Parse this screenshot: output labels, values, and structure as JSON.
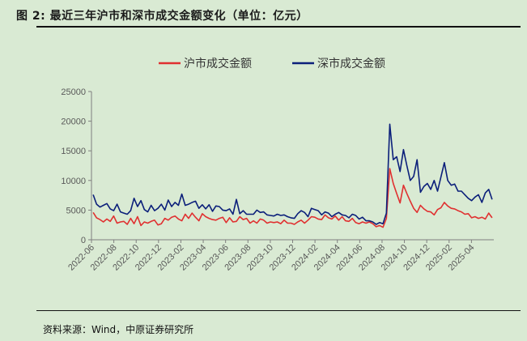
{
  "figure": {
    "title": "图 2:  最近三年沪市和深市成交金额变化（单位：亿元）",
    "source": "资料来源：Wind，中原证券研究所"
  },
  "chart_data": {
    "type": "line",
    "title": "",
    "xlabel": "",
    "ylabel": "",
    "ylim": [
      0,
      25000
    ],
    "yticks": [
      0,
      5000,
      10000,
      15000,
      20000,
      25000
    ],
    "xticks": [
      "2022-06",
      "2022-08",
      "2022-10",
      "2022-12",
      "2023-02",
      "2023-04",
      "2023-06",
      "2023-08",
      "2023-10",
      "2023-12",
      "2024-02",
      "2024-04",
      "2024-06",
      "2024-08",
      "2024-10",
      "2024-12",
      "2025-02",
      "2025-04"
    ],
    "x_range": [
      "2022-06",
      "2025-05"
    ],
    "legend_position": "top",
    "grid": false,
    "series": [
      {
        "name": "沪市成交金额",
        "color": "#e03030",
        "values": [
          4600,
          3700,
          3400,
          3000,
          3500,
          3100,
          4000,
          2800,
          3000,
          3100,
          2600,
          3600,
          2700,
          3900,
          2400,
          3000,
          2800,
          3100,
          3300,
          2500,
          2700,
          3600,
          3300,
          3800,
          4000,
          3500,
          3200,
          4300,
          3600,
          4500,
          3800,
          3200,
          4400,
          3900,
          3600,
          3400,
          3300,
          3600,
          3800,
          2900,
          3700,
          3000,
          3100,
          3900,
          3400,
          3600,
          2800,
          3200,
          2800,
          3500,
          3300,
          2800,
          3000,
          2900,
          3000,
          2700,
          3300,
          2800,
          2800,
          2600,
          3000,
          3300,
          2800,
          3300,
          3900,
          3800,
          3500,
          3400,
          4200,
          3700,
          3500,
          4000,
          3300,
          3900,
          3200,
          3100,
          3600,
          2900,
          2700,
          3000,
          2800,
          3000,
          2700,
          2200,
          2400,
          2100,
          3600,
          12000,
          9500,
          7800,
          6200,
          9200,
          7800,
          6500,
          5300,
          4600,
          5800,
          5200,
          4800,
          4700,
          4200,
          5100,
          5400,
          6300,
          5700,
          5300,
          5200,
          4900,
          4700,
          4300,
          4400,
          3700,
          3900,
          3600,
          3800,
          3500,
          4500,
          3700
        ]
      },
      {
        "name": "深市成交金额",
        "color": "#0b1f7a",
        "values": [
          7600,
          6000,
          5500,
          5800,
          6100,
          5200,
          4900,
          6000,
          4700,
          4500,
          4300,
          4900,
          7000,
          5600,
          6600,
          5100,
          4700,
          5800,
          4900,
          5300,
          6000,
          5000,
          6700,
          5600,
          6300,
          5800,
          7700,
          5800,
          6000,
          6300,
          6500,
          5300,
          5900,
          5200,
          5900,
          4800,
          5700,
          5600,
          5000,
          4900,
          5200,
          4300,
          6800,
          4400,
          4900,
          4300,
          4300,
          4300,
          5000,
          4600,
          4700,
          4200,
          4100,
          4000,
          4300,
          4100,
          4200,
          3900,
          3700,
          3600,
          4400,
          4900,
          4600,
          3900,
          5300,
          5100,
          4900,
          4200,
          4700,
          4500,
          3900,
          4300,
          4600,
          4200,
          4100,
          3700,
          4300,
          4100,
          3500,
          3800,
          3200,
          3200,
          3000,
          2600,
          2900,
          2700,
          4500,
          19500,
          13500,
          14000,
          11500,
          15200,
          12500,
          10000,
          10700,
          13500,
          8000,
          9000,
          9500,
          8500,
          10000,
          8200,
          10600,
          13000,
          10000,
          9200,
          9400,
          8200,
          8200,
          7600,
          7000,
          6600,
          7200,
          7600,
          6300,
          7900,
          8500,
          6800
        ]
      }
    ]
  }
}
